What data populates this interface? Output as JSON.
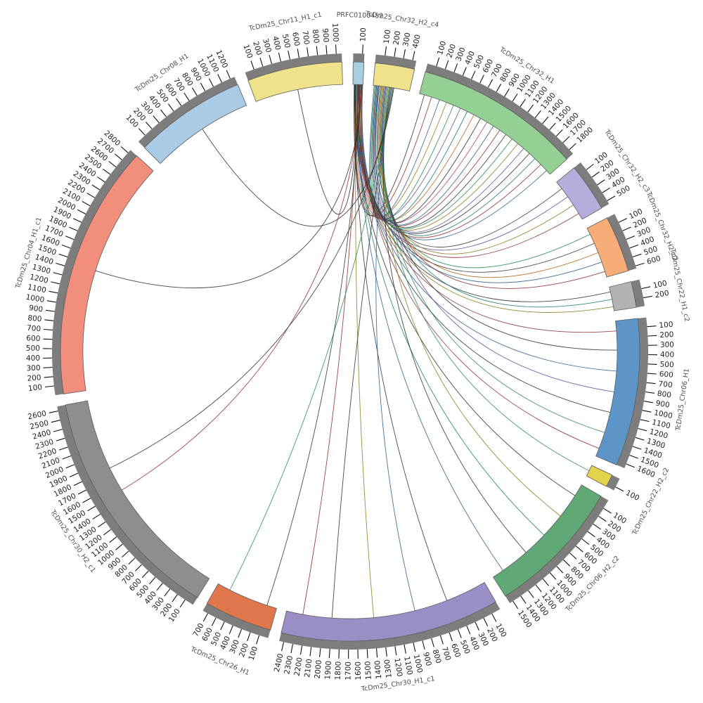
{
  "chart_data": {
    "type": "circos",
    "title": "",
    "tick_interval": 100,
    "tick_label_every": 100,
    "band_outline_color": "#5a5a5a",
    "tick_band_color": "#7d7d7d",
    "tick_color": "#111111",
    "tick_label_color": "#1c1c1c",
    "segment_label_color": "#4d4d4d",
    "segments": [
      {
        "name": "PRFC0100452",
        "size": 120,
        "color": "#a8cee2"
      },
      {
        "name": "TcDm25_Chr32_H2_c4",
        "size": 440,
        "color": "#efe28b"
      },
      {
        "name": "TcDm25_Chr32_H1",
        "size": 1860,
        "color": "#94d094"
      },
      {
        "name": "TcDm25_Chr32_H2_c3",
        "size": 540,
        "color": "#b6addc"
      },
      {
        "name": "TcDm25_Chr32_H2_c2",
        "size": 630,
        "color": "#f6ad77"
      },
      {
        "name": "TcDm25_Chr22_H1_c2",
        "size": 290,
        "color": "#b3b3b3"
      },
      {
        "name": "TcDm25_Chr06_H1",
        "size": 1650,
        "color": "#5d95c9"
      },
      {
        "name": "TcDm25_Chr22_H2_c2",
        "size": 140,
        "color": "#e3d24b"
      },
      {
        "name": "TcDm25_Chr06_H2_c2",
        "size": 1540,
        "color": "#61a877"
      },
      {
        "name": "TcDm25_Chr30_H1_c1",
        "size": 2450,
        "color": "#9b8dc5"
      },
      {
        "name": "TcDm25_Chr26_H1",
        "size": 760,
        "color": "#e0764b"
      },
      {
        "name": "TcDm25_Chr30_H2_c1",
        "size": 2650,
        "color": "#8e8e8e"
      },
      {
        "name": "TcDm25_Chr04_H1_c1",
        "size": 2840,
        "color": "#f28f7c"
      },
      {
        "name": "TcDm25_Chr08_H1",
        "size": 1250,
        "color": "#a9cbe6"
      },
      {
        "name": "TcDm25_Chr11_H1_c1",
        "size": 1060,
        "color": "#efe28b"
      }
    ],
    "chords": [
      {
        "s": 0,
        "sp": 15,
        "t": 2,
        "tp": 60,
        "c": "#303030"
      },
      {
        "s": 0,
        "sp": 25,
        "t": 2,
        "tp": 150,
        "c": "#8c2d2d"
      },
      {
        "s": 1,
        "sp": 12,
        "t": 2,
        "tp": 250,
        "c": "#2d5f8c"
      },
      {
        "s": 0,
        "sp": 35,
        "t": 2,
        "tp": 340,
        "c": "#8a7a1e"
      },
      {
        "s": 1,
        "sp": 22,
        "t": 2,
        "tp": 430,
        "c": "#2d8c57"
      },
      {
        "s": 0,
        "sp": 45,
        "t": 2,
        "tp": 520,
        "c": "#6a4fa0"
      },
      {
        "s": 1,
        "sp": 32,
        "t": 2,
        "tp": 610,
        "c": "#1f7a72"
      },
      {
        "s": 0,
        "sp": 55,
        "t": 2,
        "tp": 700,
        "c": "#b5651d"
      },
      {
        "s": 1,
        "sp": 42,
        "t": 2,
        "tp": 790,
        "c": "#303030"
      },
      {
        "s": 0,
        "sp": 65,
        "t": 2,
        "tp": 880,
        "c": "#a03c64"
      },
      {
        "s": 1,
        "sp": 52,
        "t": 2,
        "tp": 970,
        "c": "#2d5f8c"
      },
      {
        "s": 0,
        "sp": 75,
        "t": 2,
        "tp": 1060,
        "c": "#8c2d2d"
      },
      {
        "s": 1,
        "sp": 62,
        "t": 2,
        "tp": 1150,
        "c": "#303030"
      },
      {
        "s": 0,
        "sp": 85,
        "t": 2,
        "tp": 1240,
        "c": "#2d8c57"
      },
      {
        "s": 0,
        "sp": 95,
        "t": 2,
        "tp": 1330,
        "c": "#8a7a1e"
      },
      {
        "s": 1,
        "sp": 70,
        "t": 2,
        "tp": 1420,
        "c": "#6a4fa0"
      },
      {
        "s": 0,
        "sp": 105,
        "t": 2,
        "tp": 1510,
        "c": "#303030"
      },
      {
        "s": 1,
        "sp": 76,
        "t": 2,
        "tp": 1600,
        "c": "#1f7a72"
      },
      {
        "s": 0,
        "sp": 112,
        "t": 2,
        "tp": 1700,
        "c": "#8c2d2d"
      },
      {
        "s": 0,
        "sp": 118,
        "t": 2,
        "tp": 1800,
        "c": "#2d5f8c"
      },
      {
        "s": 1,
        "sp": 90,
        "t": 3,
        "tp": 100,
        "c": "#303030"
      },
      {
        "s": 0,
        "sp": 20,
        "t": 3,
        "tp": 220,
        "c": "#6a4fa0"
      },
      {
        "s": 1,
        "sp": 100,
        "t": 3,
        "tp": 340,
        "c": "#8a7a1e"
      },
      {
        "s": 0,
        "sp": 40,
        "t": 3,
        "tp": 460,
        "c": "#8c2d2d"
      },
      {
        "s": 1,
        "sp": 110,
        "t": 4,
        "tp": 80,
        "c": "#2d8c57"
      },
      {
        "s": 0,
        "sp": 60,
        "t": 4,
        "tp": 200,
        "c": "#303030"
      },
      {
        "s": 1,
        "sp": 120,
        "t": 4,
        "tp": 320,
        "c": "#b5651d"
      },
      {
        "s": 0,
        "sp": 80,
        "t": 4,
        "tp": 440,
        "c": "#2d5f8c"
      },
      {
        "s": 1,
        "sp": 130,
        "t": 4,
        "tp": 560,
        "c": "#8c2d2d"
      },
      {
        "s": 0,
        "sp": 30,
        "t": 5,
        "tp": 60,
        "c": "#303030"
      },
      {
        "s": 1,
        "sp": 140,
        "t": 5,
        "tp": 150,
        "c": "#1f7a72"
      },
      {
        "s": 0,
        "sp": 50,
        "t": 5,
        "tp": 240,
        "c": "#8a7a1e"
      },
      {
        "s": 0,
        "sp": 18,
        "t": 6,
        "tp": 120,
        "c": "#8c2d2d"
      },
      {
        "s": 1,
        "sp": 150,
        "t": 6,
        "tp": 350,
        "c": "#303030"
      },
      {
        "s": 0,
        "sp": 38,
        "t": 6,
        "tp": 600,
        "c": "#2d5f8c"
      },
      {
        "s": 1,
        "sp": 160,
        "t": 6,
        "tp": 850,
        "c": "#6a4fa0"
      },
      {
        "s": 0,
        "sp": 58,
        "t": 6,
        "tp": 1100,
        "c": "#303030"
      },
      {
        "s": 1,
        "sp": 170,
        "t": 6,
        "tp": 1350,
        "c": "#2d8c57"
      },
      {
        "s": 0,
        "sp": 78,
        "t": 6,
        "tp": 1550,
        "c": "#8c2d2d"
      },
      {
        "s": 1,
        "sp": 180,
        "t": 7,
        "tp": 70,
        "c": "#2d8c57"
      },
      {
        "s": 0,
        "sp": 22,
        "t": 8,
        "tp": 150,
        "c": "#303030"
      },
      {
        "s": 1,
        "sp": 190,
        "t": 8,
        "tp": 450,
        "c": "#8a7a1e"
      },
      {
        "s": 0,
        "sp": 42,
        "t": 8,
        "tp": 750,
        "c": "#1f7a72"
      },
      {
        "s": 1,
        "sp": 200,
        "t": 8,
        "tp": 1050,
        "c": "#303030"
      },
      {
        "s": 0,
        "sp": 62,
        "t": 8,
        "tp": 1400,
        "c": "#2d5f8c"
      },
      {
        "s": 0,
        "sp": 28,
        "t": 9,
        "tp": 500,
        "c": "#303030"
      },
      {
        "s": 1,
        "sp": 210,
        "t": 9,
        "tp": 900,
        "c": "#2d5f8c"
      },
      {
        "s": 0,
        "sp": 48,
        "t": 9,
        "tp": 1400,
        "c": "#8a7a1e"
      },
      {
        "s": 1,
        "sp": 220,
        "t": 9,
        "tp": 1900,
        "c": "#303030"
      },
      {
        "s": 0,
        "sp": 68,
        "t": 9,
        "tp": 2250,
        "c": "#8c2d2d"
      },
      {
        "s": 0,
        "sp": 88,
        "t": 10,
        "tp": 120,
        "c": "#303030"
      },
      {
        "s": 1,
        "sp": 230,
        "t": 10,
        "tp": 600,
        "c": "#2d8c57"
      },
      {
        "s": 0,
        "sp": 98,
        "t": 11,
        "tp": 1500,
        "c": "#8c2d2d"
      },
      {
        "s": 1,
        "sp": 240,
        "t": 11,
        "tp": 1800,
        "c": "#303030"
      },
      {
        "s": 0,
        "sp": 108,
        "t": 12,
        "tp": 1450,
        "c": "#303030"
      },
      {
        "s": 1,
        "sp": 250,
        "t": 13,
        "tp": 650,
        "c": "#303030"
      },
      {
        "s": 0,
        "sp": 70,
        "t": 14,
        "tp": 520,
        "c": "#303030"
      }
    ]
  }
}
